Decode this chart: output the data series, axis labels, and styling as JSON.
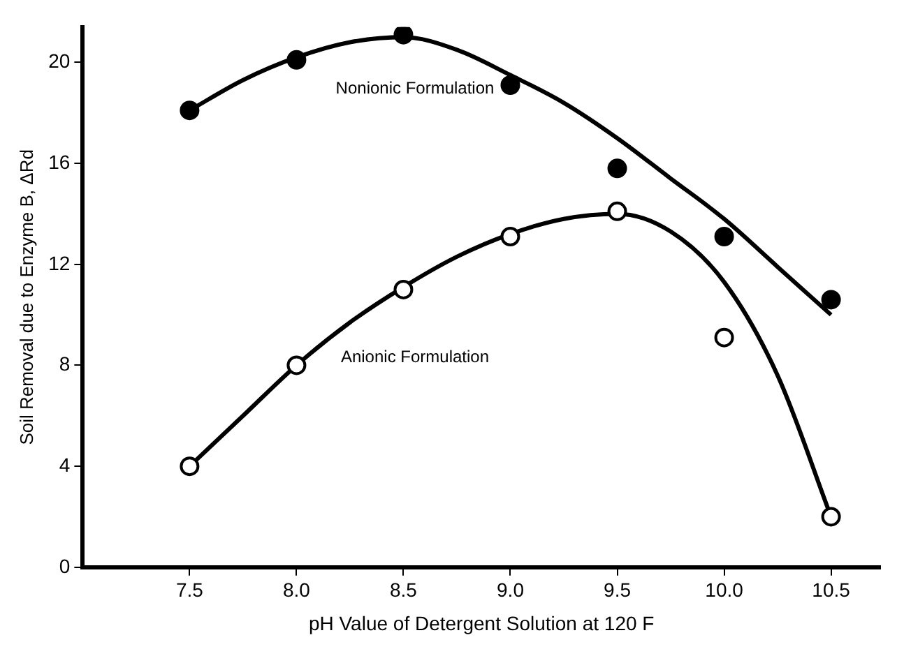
{
  "chart_data": {
    "type": "scatter",
    "xlabel": "pH Value of Detergent Solution at 120 F",
    "ylabel": "Soil Removal due to Enzyme B, ΔRd",
    "xlim": [
      7.0,
      10.73
    ],
    "xticks": [
      7.5,
      {
        "value": 8,
        "label": "8.0"
      },
      8.5,
      {
        "value": 9,
        "label": "9.0"
      },
      9.5,
      {
        "value": 10,
        "label": "10.0"
      },
      10.5
    ],
    "ylim": [
      0,
      21.4
    ],
    "yticks": [
      0,
      4,
      8,
      12,
      16,
      20
    ],
    "grid": false,
    "legend": false,
    "series": [
      {
        "marker": "circle",
        "color": "#000000",
        "x": [
          7.5,
          8.0,
          8.5,
          9.0,
          9.5,
          10.0,
          10.5
        ],
        "values": [
          18.1,
          20.1,
          21.1,
          19.1,
          15.8,
          13.1,
          10.6
        ]
      },
      {
        "marker": "circle",
        "color": "#ffffff",
        "x": [
          7.5,
          8.0,
          8.5,
          9.0,
          9.5,
          10.0,
          10.5
        ],
        "values": [
          4.0,
          8.0,
          11.0,
          13.1,
          14.1,
          9.1,
          2.0
        ]
      },
      {
        "type": "line",
        "name": "Nonionic Formulation",
        "marker": "none",
        "line_style": "solid",
        "color": "#000000",
        "x": [
          7.5,
          7.75,
          8.0,
          8.25,
          8.5,
          8.75,
          9.0,
          9.25,
          9.5,
          9.75,
          10.0,
          10.25,
          10.5
        ],
        "values": [
          18.1,
          19.3,
          20.2,
          20.8,
          21.0,
          20.5,
          19.5,
          18.4,
          17.0,
          15.4,
          13.8,
          11.9,
          10.0
        ]
      },
      {
        "type": "line",
        "name": "Anionic Formulation",
        "marker": "none",
        "line_style": "solid",
        "color": "#000000",
        "x": [
          7.5,
          7.75,
          8.0,
          8.25,
          8.5,
          8.75,
          9.0,
          9.25,
          9.5,
          9.75,
          10.0,
          10.25,
          10.5
        ],
        "values": [
          4.0,
          6.0,
          8.0,
          9.7,
          11.1,
          12.3,
          13.2,
          13.8,
          14.0,
          13.3,
          11.3,
          7.6,
          2.0
        ]
      }
    ]
  }
}
